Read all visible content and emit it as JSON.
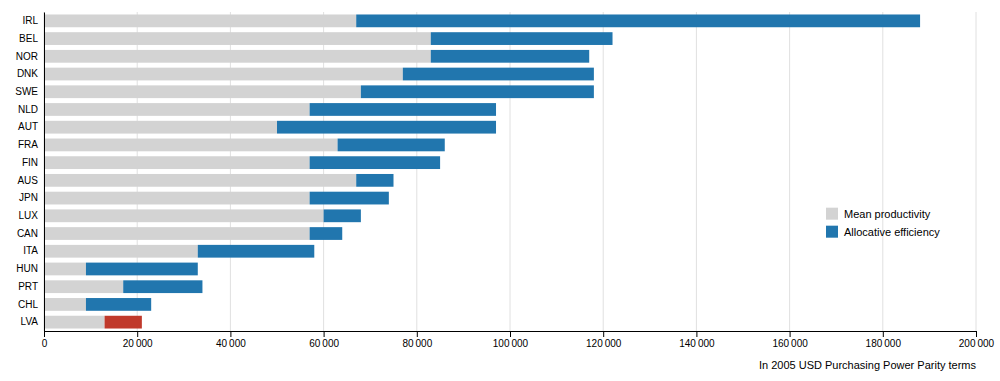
{
  "chart_data": {
    "type": "bar",
    "orientation": "horizontal",
    "stacked": true,
    "categories": [
      "IRL",
      "BEL",
      "NOR",
      "DNK",
      "SWE",
      "NLD",
      "AUT",
      "FRA",
      "FIN",
      "AUS",
      "JPN",
      "LUX",
      "CAN",
      "ITA",
      "HUN",
      "PRT",
      "CHL",
      "LVA"
    ],
    "series": [
      {
        "name": "Mean productivity",
        "color": "#d3d3d3",
        "values": [
          67000,
          83000,
          83000,
          77000,
          68000,
          57000,
          50000,
          63000,
          57000,
          67000,
          57000,
          60000,
          57000,
          33000,
          9000,
          17000,
          9000,
          13000
        ]
      },
      {
        "name": "Allocative efficiency",
        "color": "#2176ae",
        "colors": [
          "#2176ae",
          "#2176ae",
          "#2176ae",
          "#2176ae",
          "#2176ae",
          "#2176ae",
          "#2176ae",
          "#2176ae",
          "#2176ae",
          "#2176ae",
          "#2176ae",
          "#2176ae",
          "#2176ae",
          "#2176ae",
          "#2176ae",
          "#2176ae",
          "#2176ae",
          "#c0392b"
        ],
        "values": [
          121000,
          39000,
          34000,
          41000,
          50000,
          40000,
          47000,
          23000,
          28000,
          8000,
          17000,
          8000,
          7000,
          25000,
          24000,
          17000,
          14000,
          8000
        ]
      }
    ],
    "xlabel": "In 2005 USD Purchasing Power Parity terms",
    "xlim": [
      0,
      200000
    ],
    "xticks": [
      0,
      {
        "value": 20000,
        "label": "20 000"
      },
      {
        "value": 40000,
        "label": "40 000"
      },
      {
        "value": 60000,
        "label": "60 000"
      },
      {
        "value": 80000,
        "label": "80 000"
      },
      {
        "value": 100000,
        "label": "100 000"
      },
      {
        "value": 120000,
        "label": "120 000"
      },
      {
        "value": 140000,
        "label": "140 000"
      },
      {
        "value": 160000,
        "label": "160 000"
      },
      {
        "value": 180000,
        "label": "180 000"
      },
      {
        "value": 200000,
        "label": "200 000"
      }
    ],
    "grid": true,
    "legend": "lower right"
  }
}
